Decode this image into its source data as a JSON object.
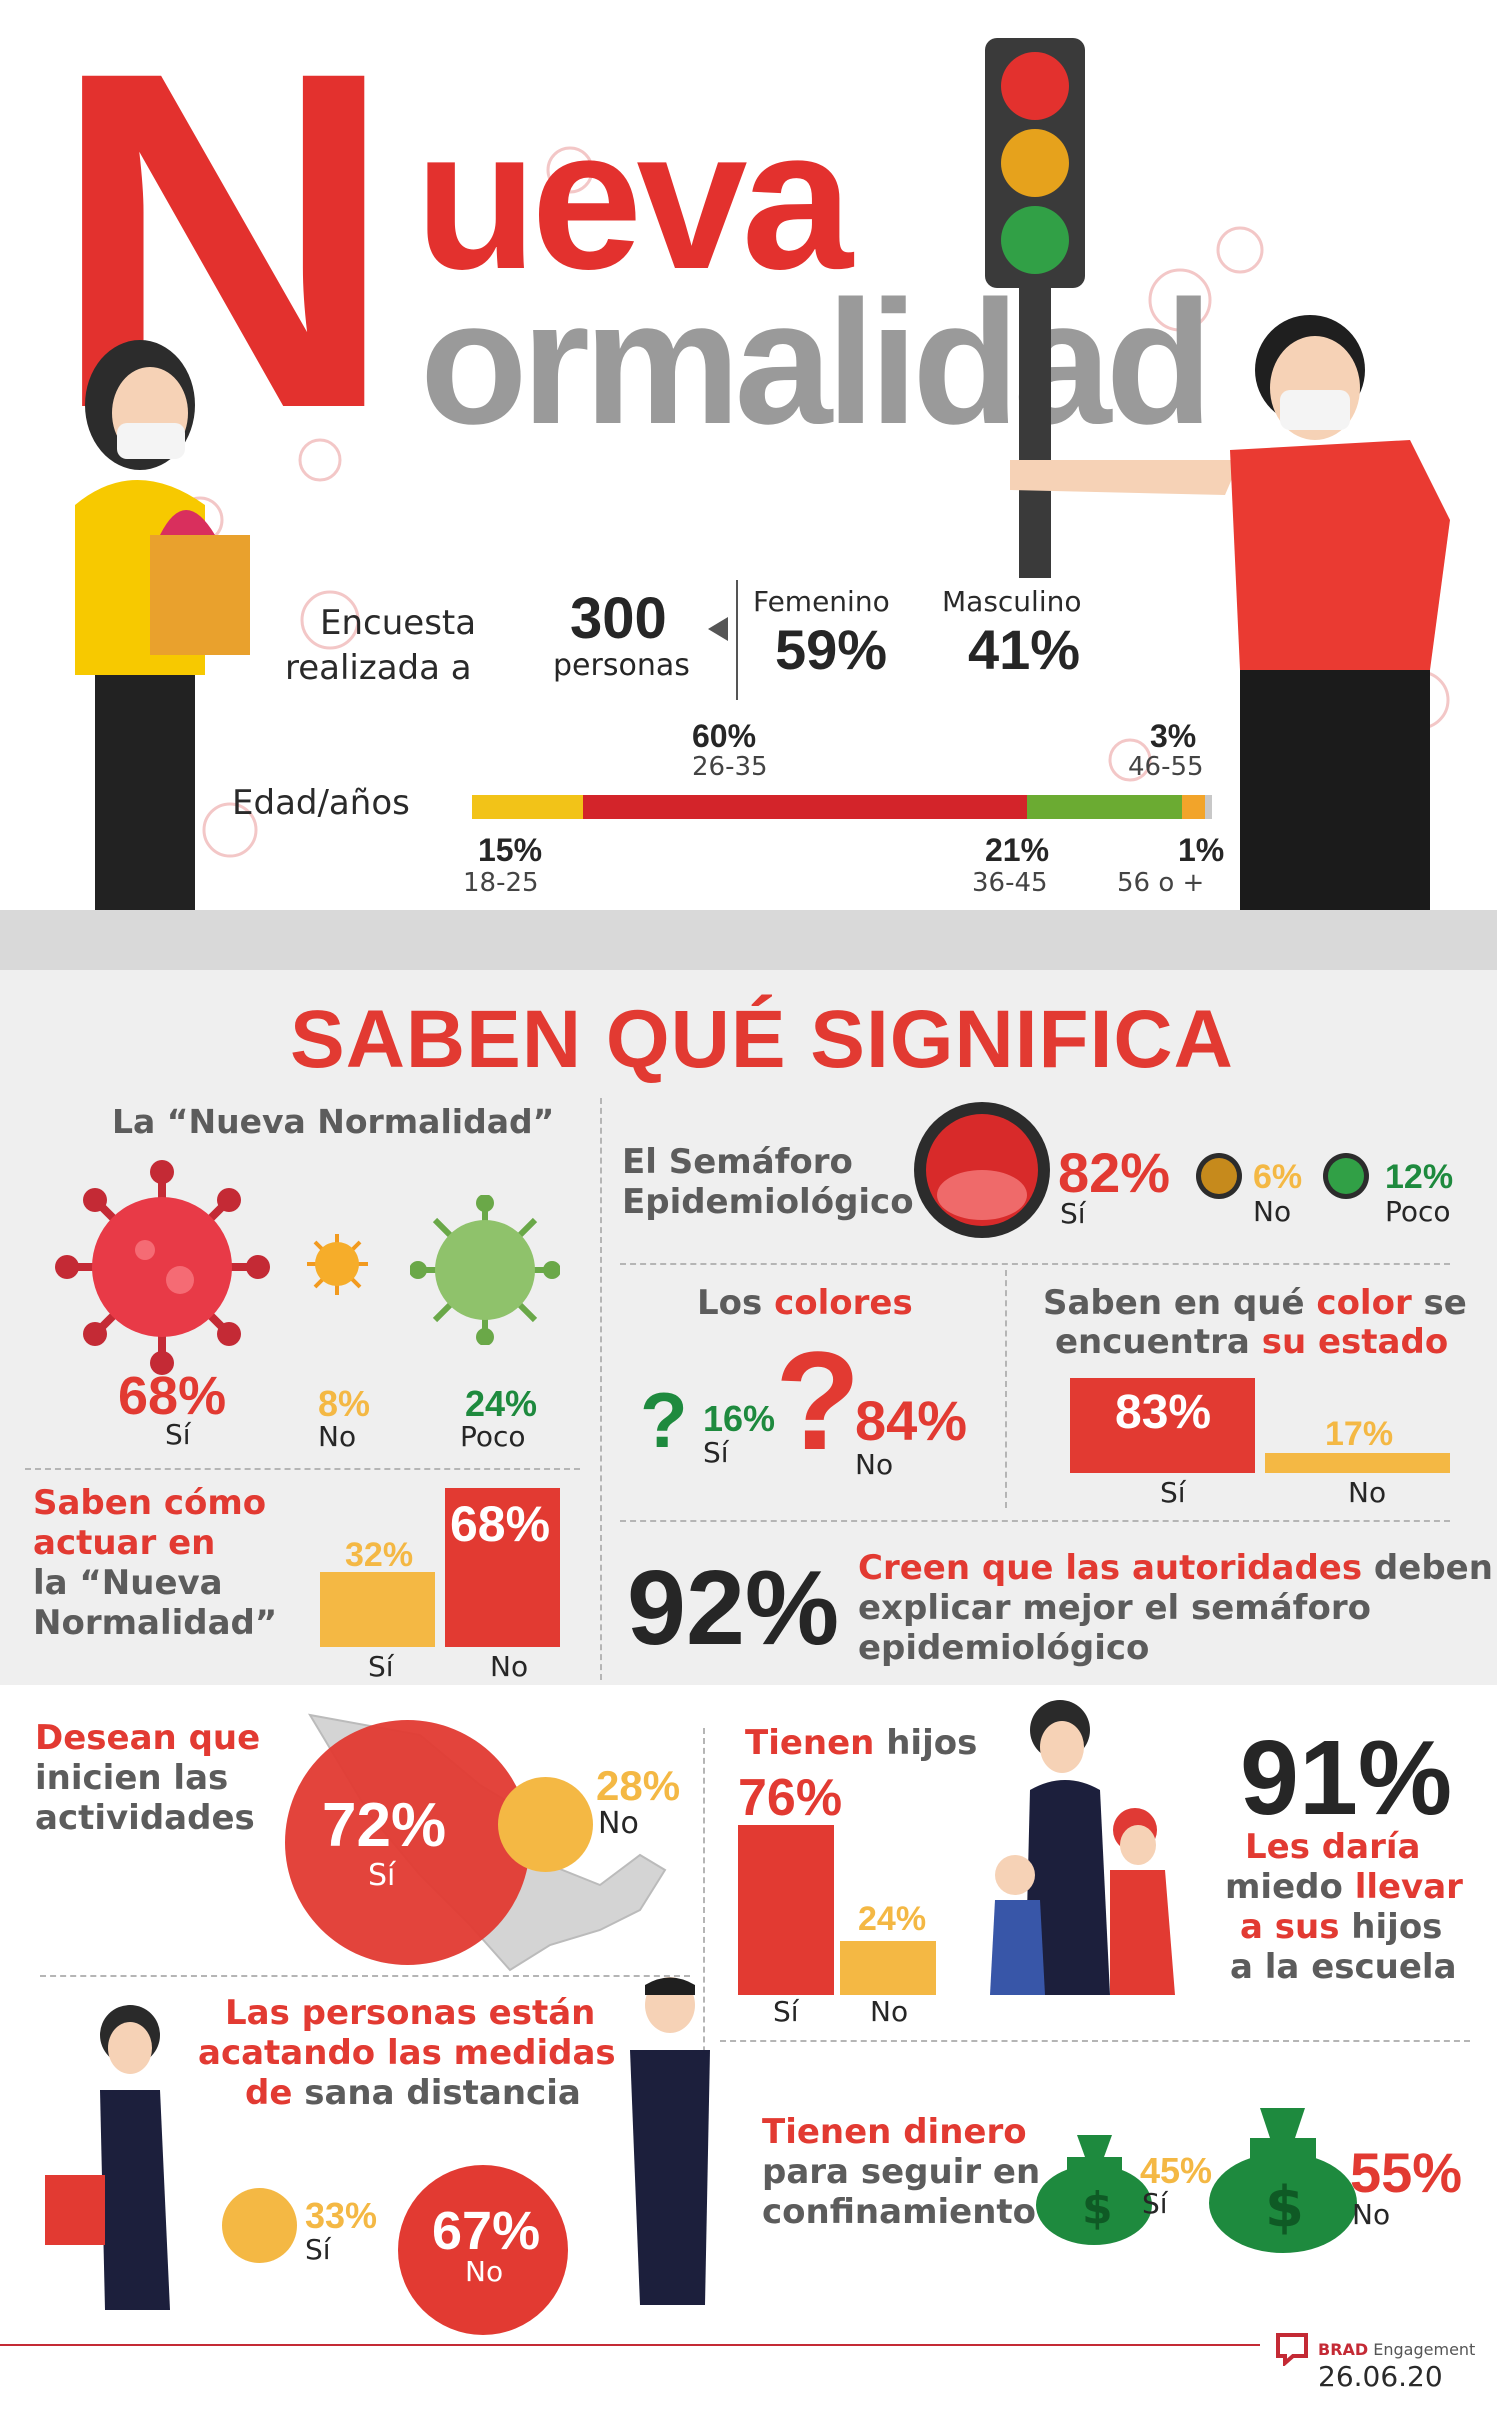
{
  "title": {
    "line1": "ueva",
    "line2": "ormalidad",
    "initial": "N"
  },
  "survey": {
    "label_line1": "Encuesta",
    "label_line2": "realizada a",
    "count": "300",
    "count_unit": "personas",
    "female_label": "Femenino",
    "female_pct": "59%",
    "male_label": "Masculino",
    "male_pct": "41%"
  },
  "age": {
    "label": "Edad/años",
    "segments": [
      {
        "pct": "15%",
        "range": "18-25",
        "value": 15,
        "color": "#f2c318"
      },
      {
        "pct": "60%",
        "range": "26-35",
        "value": 60,
        "color": "#d3242a"
      },
      {
        "pct": "21%",
        "range": "36-45",
        "value": 21,
        "color": "#6bab32"
      },
      {
        "pct": "3%",
        "range": "46-55",
        "value": 3,
        "color": "#f2a42a"
      },
      {
        "pct": "1%",
        "range": "56 o +",
        "value": 1,
        "color": "#c8c8c8"
      }
    ]
  },
  "section_title": "SABEN QUÉ SIGNIFICA",
  "nueva_normalidad": {
    "title": "La “Nueva Normalidad”",
    "items": [
      {
        "pct": "68%",
        "label": "Sí"
      },
      {
        "pct": "8%",
        "label": "No"
      },
      {
        "pct": "24%",
        "label": "Poco"
      }
    ]
  },
  "semaforo": {
    "title_line1": "El Semáforo",
    "title_line2": "Epidemiológico",
    "yes_pct": "82%",
    "yes_label": "Sí",
    "no_pct": "6%",
    "no_label": "No",
    "poco_pct": "12%",
    "poco_label": "Poco"
  },
  "colores": {
    "title_a": "Los ",
    "title_b": "colores",
    "yes_pct": "16%",
    "yes_label": "Sí",
    "no_pct": "84%",
    "no_label": "No"
  },
  "estado": {
    "line1_a": "Saben en qué ",
    "line1_b": "color",
    "line1_c": " se",
    "line2_a": "encuentra ",
    "line2_b": "su estado",
    "yes_pct": "83%",
    "yes_label": "Sí",
    "yes_value": 83,
    "no_pct": "17%",
    "no_label": "No",
    "no_value": 17
  },
  "actuar": {
    "line1": "Saben cómo",
    "line2": "actuar en",
    "line3": "la “Nueva",
    "line4": "Normalidad”",
    "yes_pct": "32%",
    "yes_label": "Sí",
    "yes_value": 32,
    "no_pct": "68%",
    "no_label": "No",
    "no_value": 68
  },
  "autoridades": {
    "pct": "92%",
    "line1_a": "Creen que las autoridades",
    "line1_b": " deben",
    "line2": "explicar mejor el semáforo",
    "line3": "epidemiológico"
  },
  "actividades": {
    "line1": "Desean que",
    "line2": "inicien las",
    "line3": "actividades",
    "yes_pct": "72%",
    "yes_label": "Sí",
    "no_pct": "28%",
    "no_label": "No"
  },
  "hijos": {
    "title_a": "Tienen",
    "title_b": " hijos",
    "yes_pct": "76%",
    "yes_label": "Sí",
    "yes_value": 76,
    "no_pct": "24%",
    "no_label": "No",
    "no_value": 24
  },
  "escuela": {
    "pct": "91%",
    "line1_a": "Les",
    "line1_b": " daría",
    "line2_a": "miedo ",
    "line2_b": "llevar",
    "line3_a": "a sus",
    "line3_b": " hijos",
    "line4": "a la escuela"
  },
  "distancia": {
    "line1": "Las personas están",
    "line2": "acatando las medidas",
    "line3_a": "de",
    "line3_b": " sana distancia",
    "yes_pct": "33%",
    "yes_label": "Sí",
    "no_pct": "67%",
    "no_label": "No"
  },
  "dinero": {
    "line1": "Tienen dinero",
    "line2": "para seguir en",
    "line3": "confinamiento",
    "yes_pct": "45%",
    "yes_label": "Sí",
    "no_pct": "55%",
    "no_label": "No"
  },
  "footer": {
    "brand_bold": "BRAD",
    "brand_rest": " Engagement",
    "date": "26.06.20"
  },
  "colors": {
    "red": "#e23a32",
    "yellow": "#f4b844",
    "green": "#1e8a3e",
    "grey": "#5c5c5c"
  }
}
